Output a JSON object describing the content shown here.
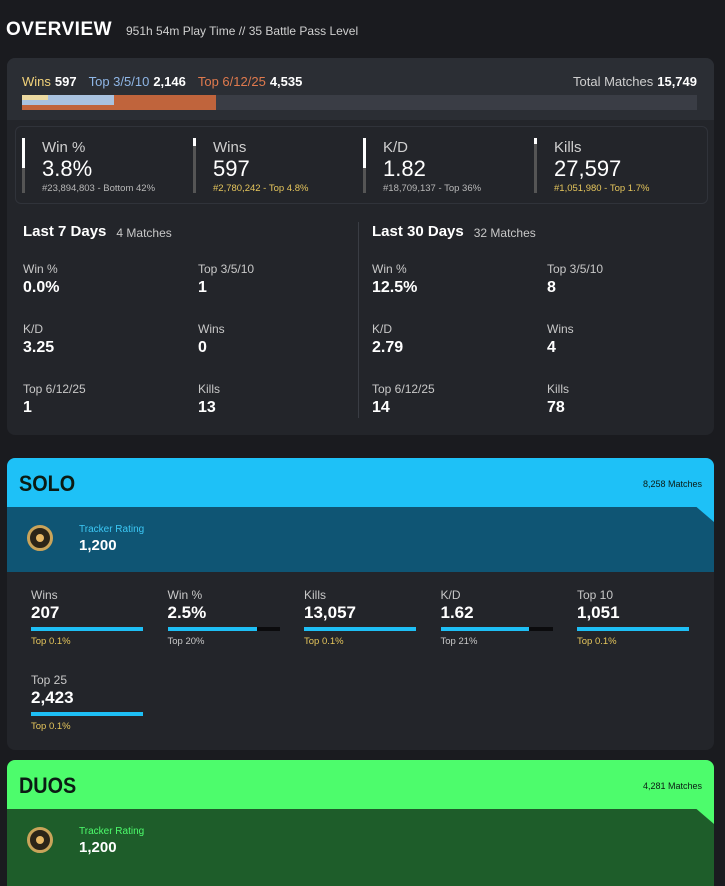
{
  "header": {
    "title": "OVERVIEW",
    "subtitle": "951h 54m Play Time // 35 Battle Pass Level"
  },
  "placements": {
    "segments": [
      {
        "name": "Wins",
        "value": {
          "value": 597,
          "label": "597"
        },
        "color": "#ecd9a0",
        "text_color": "#f2d27a"
      },
      {
        "name": "Top 3/5/10",
        "value": {
          "value": 2146,
          "label": "2,146"
        },
        "color": "#a9c2e0",
        "text_color": "#8fb6e6"
      },
      {
        "name": "Top 6/12/25",
        "value": {
          "value": 4535,
          "label": "4,535"
        },
        "color": "#c0643c",
        "text_color": "#e07a4e"
      }
    ],
    "total": {
      "name": "Total Matches",
      "value": {
        "value": 15749,
        "label": "15,749"
      }
    }
  },
  "lifetime": [
    {
      "label": "Win %",
      "value": "3.8%",
      "rank": "#23,894,803 - Bottom 42%",
      "highlight": false
    },
    {
      "label": "Wins",
      "value": "597",
      "rank": "#2,780,242 - Top 4.8%",
      "highlight": true
    },
    {
      "label": "K/D",
      "value": "1.82",
      "rank": "#18,709,137 - Top 36%",
      "highlight": false
    },
    {
      "label": "Kills",
      "value": "27,597",
      "rank": "#1,051,980 - Top 1.7%",
      "highlight": true
    }
  ],
  "recent": [
    {
      "title": "Last 7 Days",
      "matches": "4 Matches",
      "stats": [
        {
          "label": "Win %",
          "value": "0.0%"
        },
        {
          "label": "Top 3/5/10",
          "value": "1"
        },
        {
          "label": "K/D",
          "value": "3.25"
        },
        {
          "label": "Wins",
          "value": "0"
        },
        {
          "label": "Top 6/12/25",
          "value": "1"
        },
        {
          "label": "Kills",
          "value": "13"
        }
      ]
    },
    {
      "title": "Last 30 Days",
      "matches": "32 Matches",
      "stats": [
        {
          "label": "Win %",
          "value": "12.5%"
        },
        {
          "label": "Top 3/5/10",
          "value": "8"
        },
        {
          "label": "K/D",
          "value": "2.79"
        },
        {
          "label": "Wins",
          "value": "4"
        },
        {
          "label": "Top 6/12/25",
          "value": "14"
        },
        {
          "label": "Kills",
          "value": "78"
        }
      ]
    }
  ],
  "modes": [
    {
      "title": "SOLO",
      "matches": "8,258 Matches",
      "rating_label": "Tracker Rating",
      "rating": "1,200",
      "stats": [
        {
          "label": "Wins",
          "value": "207",
          "rank": "Top 0.1%",
          "highlight": true
        },
        {
          "label": "Win %",
          "value": "2.5%",
          "rank": "Top 20%",
          "highlight": false
        },
        {
          "label": "Kills",
          "value": "13,057",
          "rank": "Top 0.1%",
          "highlight": true
        },
        {
          "label": "K/D",
          "value": "1.62",
          "rank": "Top 21%",
          "highlight": false
        },
        {
          "label": "Top 10",
          "value": "1,051",
          "rank": "Top 0.1%",
          "highlight": true
        },
        {
          "label": "Top 25",
          "value": "2,423",
          "rank": "Top 0.1%",
          "highlight": true
        }
      ]
    },
    {
      "title": "DUOS",
      "matches": "4,281 Matches",
      "rating_label": "Tracker Rating",
      "rating": "1,200",
      "stats": []
    }
  ]
}
